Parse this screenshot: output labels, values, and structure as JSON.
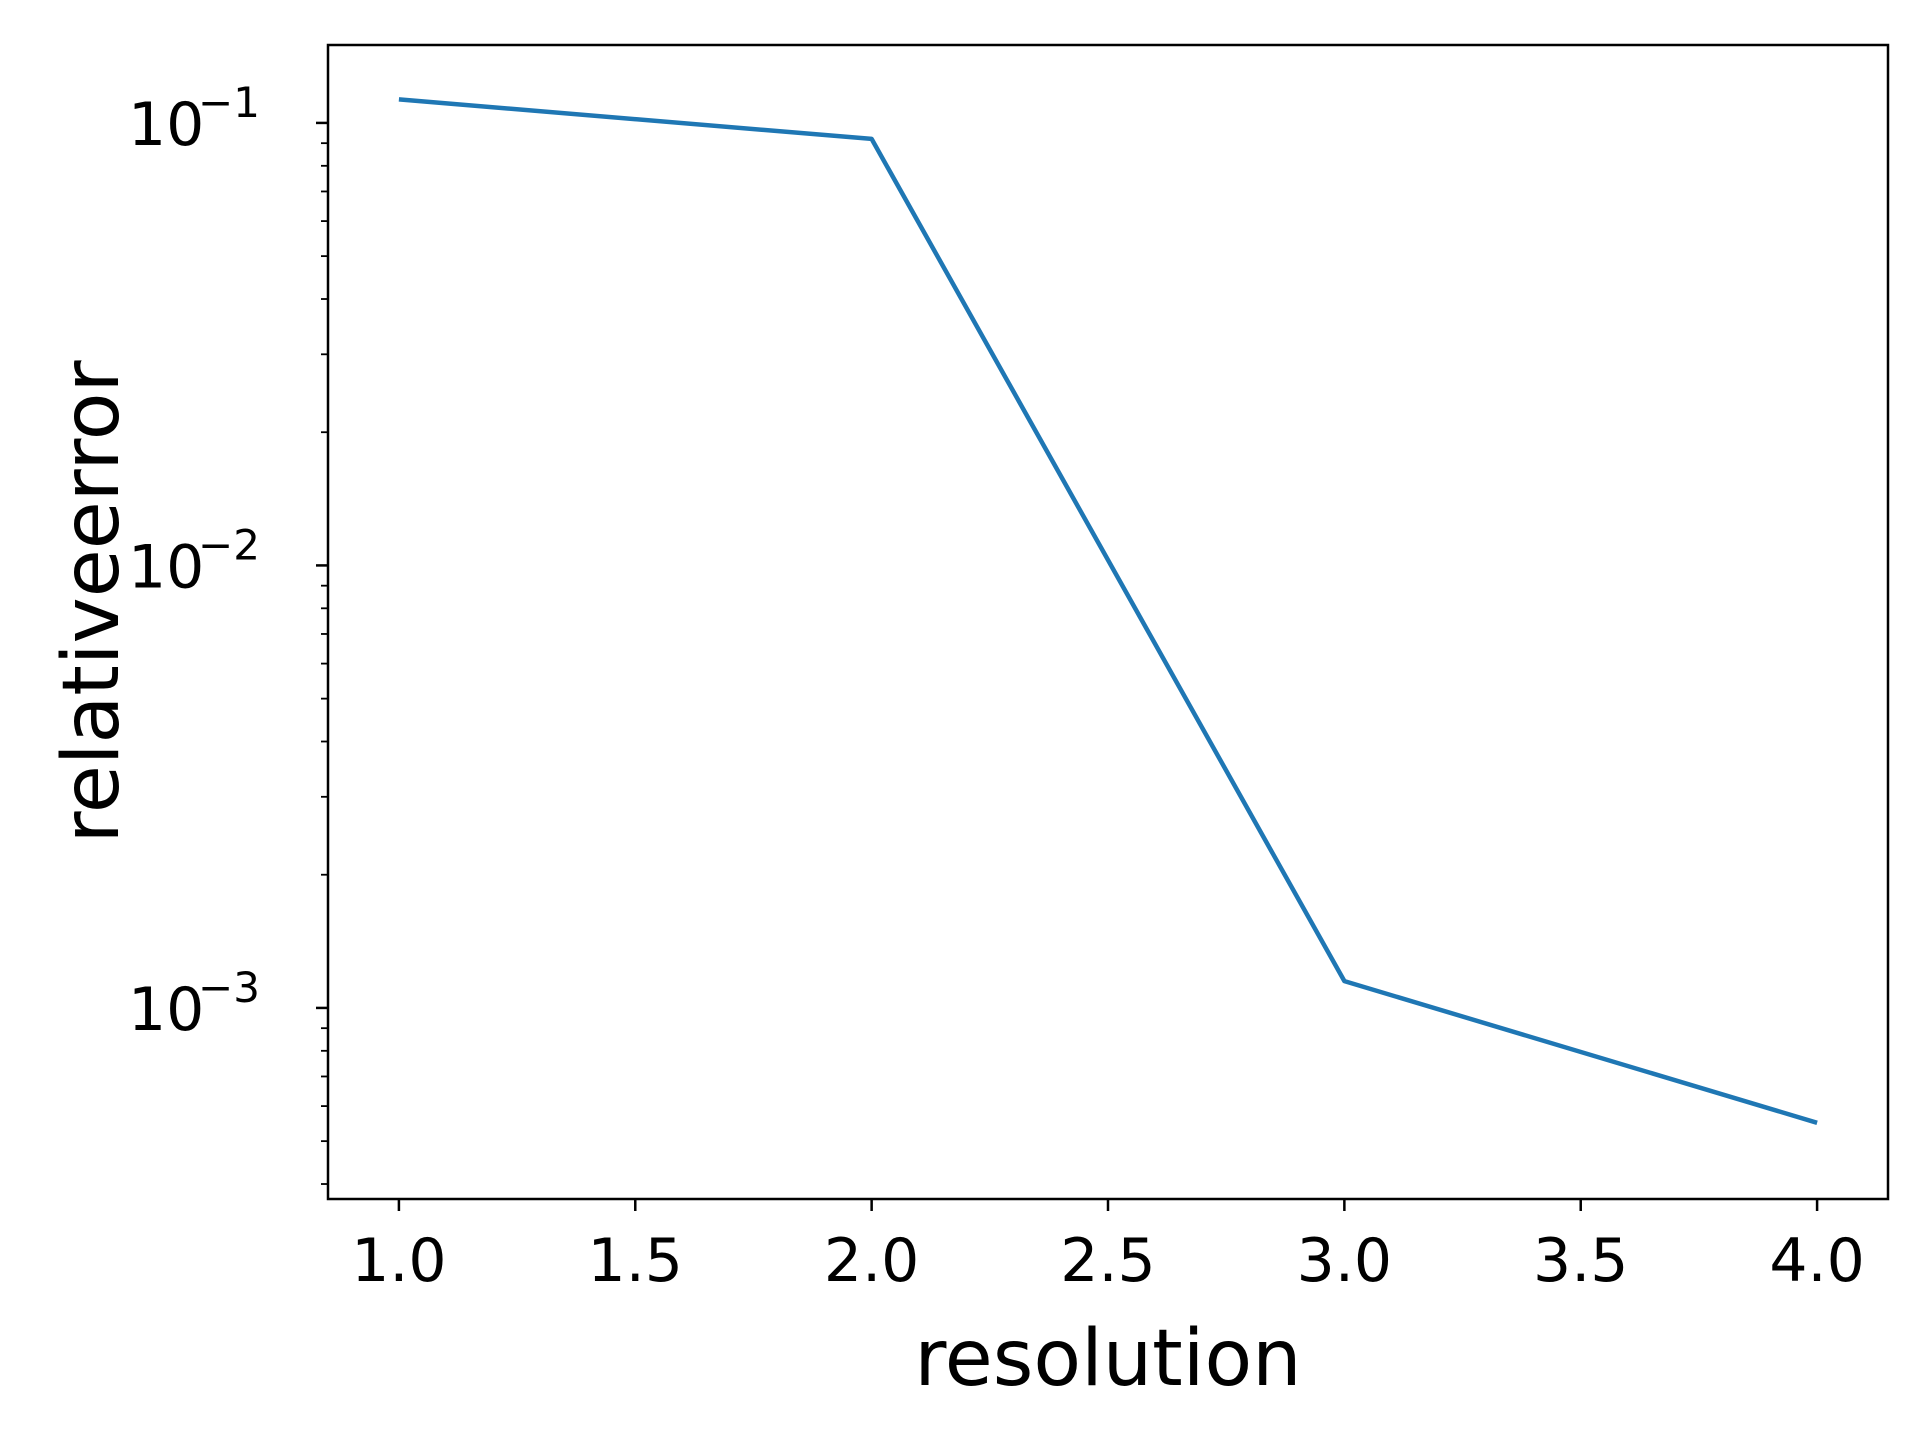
{
  "chart_data": {
    "type": "line",
    "title": "",
    "xlabel": "resolution",
    "ylabel": "relativeerror",
    "x": [
      1.0,
      2.0,
      3.0,
      4.0
    ],
    "series": [
      {
        "values": [
          0.113,
          0.092,
          0.00115,
          0.00055
        ]
      }
    ],
    "xlim": [
      0.85,
      4.15
    ],
    "ylim": [
      0.00037,
      0.15
    ],
    "yscale": "log",
    "xticks": [
      1.0,
      1.5,
      2.0,
      2.5,
      3.0,
      3.5,
      4.0
    ],
    "xtick_labels": [
      "1.0",
      "1.5",
      "2.0",
      "2.5",
      "3.0",
      "3.5",
      "4.0"
    ],
    "yticks": [
      0.1,
      0.01,
      0.001
    ],
    "ytick_bases": [
      "10",
      "10",
      "10"
    ],
    "ytick_exponents": [
      "−1",
      "−2",
      "−3"
    ],
    "grid": false,
    "legend": "none",
    "line_color": "#1f77b4"
  }
}
